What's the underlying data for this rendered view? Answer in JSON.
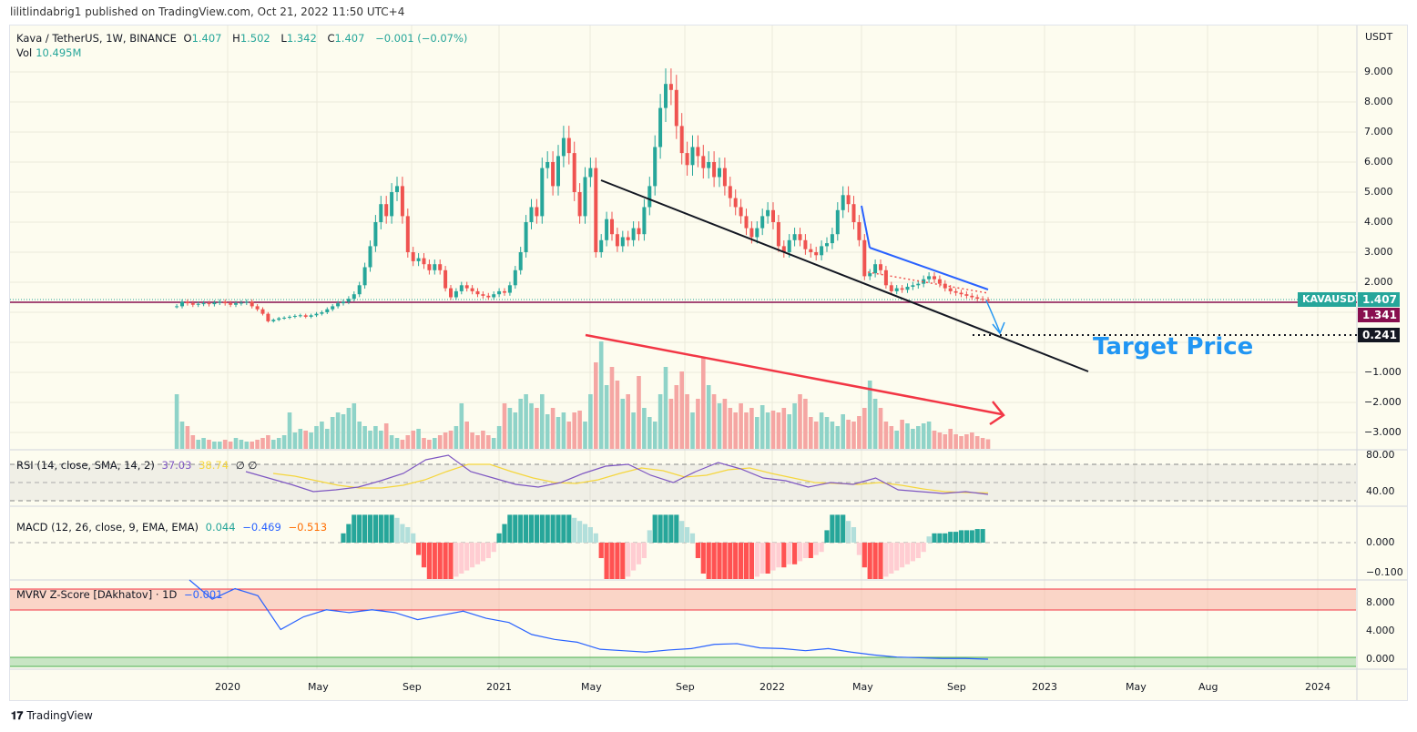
{
  "header": {
    "published": "lilitlindabrig1 published on TradingView.com, Oct 21, 2022 11:50 UTC+4"
  },
  "symbol": {
    "name": "Kava / TetherUS, 1W, BINANCE",
    "o_label": "O",
    "o": "1.407",
    "h_label": "H",
    "h": "1.502",
    "l_label": "L",
    "l": "1.342",
    "c_label": "C",
    "c": "1.407",
    "change": "−0.001 (−0.07%)",
    "vol_label": "Vol",
    "vol": "10.495M"
  },
  "price_axis": {
    "currency": "USDT",
    "ticks": [
      "9.000",
      "8.000",
      "7.000",
      "6.000",
      "5.000",
      "4.000",
      "3.000",
      "2.000",
      "−1.000",
      "−2.000",
      "−3.000"
    ],
    "tick_values": [
      9,
      8,
      7,
      6,
      5,
      4,
      3,
      2,
      -1,
      -2,
      -3
    ]
  },
  "tags": {
    "symbol": "KAVAUSDT",
    "last": "1.407",
    "line2": "1.341",
    "target": "0.241"
  },
  "annotation": {
    "target_text": "Target Price"
  },
  "rsi": {
    "label": "RSI (14, close, SMA, 14, 2)",
    "value": "37.03",
    "sma": "38.74",
    "extra": "∅ ∅",
    "ticks": [
      "80.00",
      "40.00"
    ]
  },
  "macd": {
    "label": "MACD (12, 26, close, 9, EMA, EMA)",
    "hist": "0.044",
    "macd": "−0.469",
    "signal": "−0.513",
    "ticks": [
      "0.000",
      "−0.100"
    ]
  },
  "mvrv": {
    "label": "MVRV Z-Score [DAkhatov] · 1D",
    "value": "−0.001",
    "ticks": [
      "8.000",
      "4.000",
      "0.000"
    ]
  },
  "time_axis": [
    "2020",
    "May",
    "Sep",
    "2021",
    "May",
    "Sep",
    "2022",
    "May",
    "Sep",
    "2023",
    "May",
    "Aug",
    "2024"
  ],
  "footer": {
    "brand": "TradingView"
  },
  "colors": {
    "up": "#26a69a",
    "down": "#ef5350",
    "rsi": "#7e57c2",
    "rsi_sma": "#f5d63d",
    "macd": "#2962ff",
    "signal": "#ff6d00",
    "mvrv": "#2962ff",
    "target": "#2196f3",
    "maroon": "#880e4f"
  },
  "chart_data": {
    "type": "candlestick",
    "interval": "1W",
    "x_start": "2019-11",
    "x_end": "2022-10",
    "ylim": [
      -3.3,
      9.5
    ],
    "closes": [
      1.2,
      1.35,
      1.3,
      1.25,
      1.28,
      1.3,
      1.27,
      1.32,
      1.35,
      1.3,
      1.25,
      1.3,
      1.32,
      1.35,
      1.2,
      1.1,
      0.95,
      0.7,
      0.75,
      0.8,
      0.82,
      0.85,
      0.88,
      0.9,
      0.85,
      0.9,
      0.95,
      1.0,
      1.1,
      1.2,
      1.3,
      1.35,
      1.45,
      1.6,
      1.9,
      2.5,
      3.2,
      4.0,
      4.6,
      4.2,
      5.0,
      5.2,
      4.2,
      3.0,
      2.7,
      2.8,
      2.6,
      2.4,
      2.6,
      2.4,
      1.8,
      1.5,
      1.7,
      1.9,
      1.8,
      1.7,
      1.6,
      1.55,
      1.5,
      1.6,
      1.7,
      1.65,
      1.9,
      2.4,
      3.0,
      4.0,
      4.5,
      4.2,
      5.8,
      6.0,
      5.2,
      6.2,
      6.8,
      6.3,
      5.0,
      4.2,
      5.5,
      5.8,
      3.0,
      3.4,
      4.1,
      3.6,
      3.2,
      3.5,
      3.4,
      3.8,
      3.6,
      4.5,
      5.2,
      6.5,
      7.8,
      8.6,
      8.4,
      7.2,
      6.3,
      5.9,
      6.5,
      6.2,
      5.8,
      6.0,
      5.5,
      5.8,
      5.2,
      4.8,
      4.5,
      4.2,
      3.8,
      3.5,
      3.8,
      4.2,
      4.4,
      4.0,
      3.2,
      3.0,
      3.4,
      3.6,
      3.4,
      3.1,
      3.0,
      2.9,
      3.2,
      3.3,
      3.6,
      4.4,
      4.9,
      4.6,
      4.0,
      3.4,
      2.2,
      2.3,
      2.6,
      2.4,
      1.9,
      1.7,
      1.8,
      1.75,
      1.85,
      1.9,
      1.95,
      2.1,
      2.2,
      2.1,
      1.95,
      1.8,
      1.7,
      1.65,
      1.6,
      1.55,
      1.5,
      1.45,
      1.42,
      1.407
    ],
    "volume_m": [
      60,
      30,
      25,
      15,
      10,
      12,
      10,
      8,
      8,
      10,
      8,
      12,
      10,
      8,
      8,
      10,
      12,
      15,
      10,
      12,
      15,
      40,
      18,
      22,
      20,
      18,
      25,
      30,
      22,
      35,
      40,
      38,
      45,
      50,
      30,
      25,
      20,
      25,
      20,
      28,
      15,
      12,
      10,
      15,
      20,
      22,
      12,
      10,
      12,
      15,
      18,
      20,
      25,
      50,
      30,
      18,
      15,
      20,
      15,
      12,
      25,
      50,
      45,
      40,
      55,
      60,
      50,
      45,
      60,
      38,
      45,
      35,
      40,
      30,
      40,
      42,
      30,
      60,
      95,
      118,
      70,
      90,
      75,
      55,
      60,
      40,
      80,
      45,
      35,
      30,
      60,
      90,
      55,
      70,
      85,
      60,
      40,
      55,
      100,
      70,
      60,
      50,
      55,
      45,
      40,
      50,
      40,
      45,
      35,
      48,
      40,
      42,
      40,
      45,
      38,
      50,
      60,
      55,
      35,
      30,
      40,
      35,
      30,
      25,
      38,
      32,
      30,
      36,
      45,
      75,
      55,
      45,
      30,
      25,
      20,
      32,
      28,
      22,
      25,
      28,
      30,
      20,
      18,
      16,
      22,
      16,
      14,
      16,
      18,
      14,
      12,
      10.495
    ],
    "rsi_series": [
      62,
      55,
      48,
      40,
      42,
      45,
      52,
      60,
      75,
      80,
      62,
      55,
      48,
      45,
      50,
      60,
      68,
      70,
      58,
      50,
      62,
      72,
      65,
      55,
      52,
      45,
      50,
      48,
      55,
      42,
      40,
      38,
      40,
      37
    ],
    "rsi_sma_series": [
      60,
      57,
      52,
      47,
      44,
      44,
      47,
      53,
      62,
      70,
      70,
      62,
      55,
      50,
      49,
      53,
      60,
      66,
      63,
      56,
      58,
      64,
      66,
      60,
      55,
      50,
      49,
      48,
      50,
      47,
      43,
      40,
      39,
      38.7
    ],
    "macd_hist": [
      0,
      0,
      0,
      0,
      0,
      0,
      0,
      0,
      0,
      0,
      0,
      0,
      0,
      0,
      0,
      0,
      0,
      0,
      0,
      0,
      0,
      0,
      0,
      0,
      0,
      0,
      0,
      0,
      0,
      0,
      0,
      0.03,
      0.06,
      0.09,
      0.09,
      0.09,
      0.09,
      0.09,
      0.09,
      0.09,
      0.09,
      0.08,
      0.06,
      0.05,
      0.03,
      -0.04,
      -0.08,
      -0.12,
      -0.12,
      -0.12,
      -0.12,
      -0.12,
      -0.11,
      -0.1,
      -0.09,
      -0.08,
      -0.07,
      -0.06,
      -0.05,
      -0.03,
      0.03,
      0.06,
      0.09,
      0.09,
      0.09,
      0.09,
      0.09,
      0.09,
      0.09,
      0.09,
      0.09,
      0.09,
      0.09,
      0.09,
      0.08,
      0.07,
      0.06,
      0.05,
      0.03,
      -0.05,
      -0.12,
      -0.12,
      -0.12,
      -0.12,
      -0.11,
      -0.09,
      -0.07,
      -0.05,
      0.04,
      0.09,
      0.09,
      0.09,
      0.09,
      0.09,
      0.07,
      0.05,
      0.03,
      -0.05,
      -0.1,
      -0.12,
      -0.12,
      -0.12,
      -0.12,
      -0.12,
      -0.12,
      -0.12,
      -0.12,
      -0.12,
      -0.11,
      -0.1,
      -0.1,
      -0.09,
      -0.08,
      -0.08,
      -0.07,
      -0.07,
      -0.06,
      -0.05,
      -0.05,
      -0.04,
      -0.03,
      0.04,
      0.09,
      0.09,
      0.09,
      0.07,
      0.05,
      -0.04,
      -0.08,
      -0.12,
      -0.12,
      -0.12,
      -0.11,
      -0.1,
      -0.09,
      -0.08,
      -0.07,
      -0.06,
      -0.05,
      -0.03,
      0.02,
      0.03,
      0.03,
      0.03,
      0.035,
      0.035,
      0.04,
      0.04,
      0.04,
      0.044,
      0.044
    ],
    "mvrv_series": [
      12,
      8.5,
      10,
      9,
      4.2,
      6,
      7,
      6.6,
      7,
      6.6,
      5.6,
      6.2,
      6.8,
      5.8,
      5.2,
      3.5,
      2.8,
      2.4,
      1.4,
      1.2,
      1.0,
      1.3,
      1.5,
      2.1,
      2.2,
      1.6,
      1.5,
      1.2,
      1.5,
      1.0,
      0.6,
      0.3,
      0.2,
      0.1,
      0.1,
      -0.001
    ]
  }
}
